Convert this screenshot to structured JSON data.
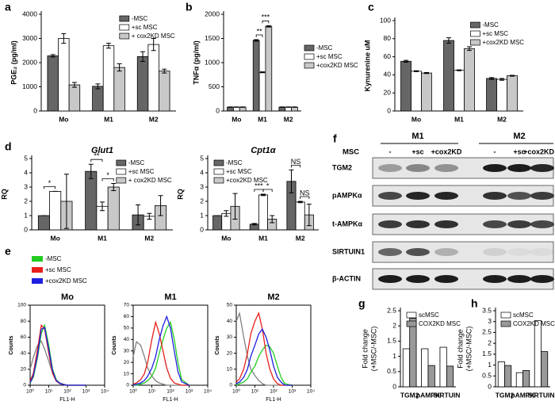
{
  "chart_data": [
    {
      "type": "bar",
      "label": "a",
      "ylabel": "PGE₂ (pg/ml)",
      "categories": [
        "Mo",
        "M1",
        "M2"
      ],
      "ylim": [
        0,
        4000
      ],
      "yticks": [
        0,
        1000,
        2000,
        3000,
        4000
      ],
      "legend": "upper right",
      "series": [
        {
          "name": "-MSC",
          "color": "#666666",
          "values": [
            2280,
            1020,
            2250
          ],
          "errors": [
            50,
            100,
            200
          ]
        },
        {
          "name": "+sc MSC",
          "color": "#ffffff",
          "values": [
            3000,
            2700,
            2750
          ],
          "errors": [
            200,
            100,
            250
          ]
        },
        {
          "name": "+ cox2KD MSC",
          "color": "#c8c8c8",
          "values": [
            1080,
            1800,
            1650
          ],
          "errors": [
            100,
            150,
            80
          ]
        }
      ]
    },
    {
      "type": "bar",
      "label": "b",
      "ylabel": "TNFα (pg/ml)",
      "categories": [
        "Mo",
        "M1",
        "M2"
      ],
      "ylim": [
        0,
        2000
      ],
      "yticks": [
        0,
        500,
        1000,
        1500,
        2000
      ],
      "legend": "right",
      "annotations": [
        "**",
        "***"
      ],
      "series": [
        {
          "name": "-MSC",
          "color": "#666666",
          "values": [
            80,
            1460,
            80
          ],
          "errors": [
            5,
            15,
            5
          ]
        },
        {
          "name": "+sc MSC",
          "color": "#ffffff",
          "values": [
            80,
            800,
            80
          ],
          "errors": [
            5,
            10,
            5
          ]
        },
        {
          "name": "+cox2KD MSC",
          "color": "#c8c8c8",
          "values": [
            80,
            1750,
            80
          ],
          "errors": [
            5,
            15,
            5
          ]
        }
      ]
    },
    {
      "type": "bar",
      "label": "c",
      "ylabel": "Kynurenine uM",
      "categories": [
        "Mo",
        "M1",
        "M2"
      ],
      "ylim": [
        0,
        100
      ],
      "yticks": [
        0,
        20,
        40,
        60,
        80,
        100
      ],
      "legend": "upper right",
      "series": [
        {
          "name": "-MSC",
          "color": "#666666",
          "values": [
            55,
            78,
            36
          ],
          "errors": [
            1,
            3,
            1
          ]
        },
        {
          "name": "+sc MSC",
          "color": "#ffffff",
          "values": [
            44,
            45,
            35
          ],
          "errors": [
            0.5,
            0.5,
            1
          ]
        },
        {
          "name": "+cox2KD MSC",
          "color": "#c8c8c8",
          "values": [
            42,
            69,
            39
          ],
          "errors": [
            0.5,
            2,
            0.5
          ]
        }
      ]
    },
    {
      "type": "bar",
      "label": "d",
      "title": "Glut1",
      "ylabel": "RQ",
      "categories": [
        "Mo",
        "M1",
        "M2"
      ],
      "ylim": [
        0,
        5
      ],
      "yticks": [
        0,
        1,
        2,
        3,
        4,
        5
      ],
      "legend": "upper right",
      "annotations": [
        "*",
        "**",
        "*"
      ],
      "series": [
        {
          "name": "-MSC",
          "color": "#666666",
          "values": [
            1,
            4.1,
            1.05
          ],
          "errors": [
            0,
            0.5,
            0.7
          ]
        },
        {
          "name": "+sc MSC",
          "color": "#ffffff",
          "values": [
            2.7,
            1.65,
            0.95
          ],
          "errors": [
            0,
            0.3,
            0.2
          ]
        },
        {
          "name": "+ cox2KD MSC",
          "color": "#c8c8c8",
          "values": [
            2.0,
            3.0,
            1.7
          ],
          "errors": [
            1.9,
            0.25,
            0.7
          ]
        }
      ]
    },
    {
      "type": "bar",
      "title": "Cpt1α",
      "ylabel": "RQ",
      "categories": [
        "Mo",
        "M1",
        "M2"
      ],
      "ylim": [
        0,
        5
      ],
      "yticks": [
        0,
        1,
        2,
        3,
        4,
        5
      ],
      "legend": "upper left",
      "annotations": [
        "***",
        "*",
        "NS",
        "NS"
      ],
      "series": [
        {
          "name": "-MSC",
          "color": "#666666",
          "values": [
            1,
            0.4,
            3.4
          ],
          "errors": [
            0,
            0.05,
            0.8
          ]
        },
        {
          "name": "+sc MSC",
          "color": "#ffffff",
          "values": [
            1.15,
            2.45,
            1.95
          ],
          "errors": [
            0.2,
            0.05,
            0.05
          ]
        },
        {
          "name": "+cox2KD MSC",
          "color": "#c8c8c8",
          "values": [
            1.65,
            0.75,
            1.05
          ],
          "errors": [
            0.9,
            0.25,
            0.75
          ]
        }
      ]
    },
    {
      "type": "line",
      "label": "e",
      "title": "Mo",
      "xlabel": "FL1-H",
      "ylabel": "Counts",
      "xscale": "log",
      "legend": "above",
      "xlim": [
        1,
        10000
      ],
      "xticks": [
        {
          "value": 1,
          "label": "10⁰"
        },
        {
          "value": 10,
          "label": "10¹"
        },
        {
          "value": 100,
          "label": "10²"
        },
        {
          "value": 1000,
          "label": "10³"
        },
        {
          "value": 10000,
          "label": "10⁴"
        }
      ],
      "ylim": [
        0,
        100
      ],
      "yticks": [
        0,
        20,
        40,
        60,
        80,
        100
      ],
      "x": [
        1,
        1.5,
        2.5,
        4,
        6,
        10,
        16,
        25,
        40,
        63,
        100,
        160,
        250,
        400,
        1000
      ],
      "series": [
        {
          "color": "#808080",
          "values": [
            20,
            35,
            50,
            55,
            45,
            30,
            15,
            6,
            3,
            1,
            0,
            0,
            0,
            0,
            0
          ]
        },
        {
          "name": "-MSC",
          "color": "#22cc22",
          "values": [
            3,
            10,
            35,
            65,
            75,
            50,
            20,
            7,
            2,
            1,
            0,
            0,
            0,
            0,
            0
          ]
        },
        {
          "name": "+sc MSC",
          "color": "#e8201c",
          "values": [
            5,
            15,
            45,
            75,
            70,
            40,
            15,
            5,
            2,
            1,
            0,
            0,
            0,
            0,
            0
          ]
        },
        {
          "name": "+cox2KD MSC",
          "color": "#1f1fe0",
          "values": [
            3,
            12,
            38,
            70,
            72,
            45,
            18,
            6,
            2,
            1,
            0,
            0,
            0,
            0,
            0
          ]
        }
      ]
    },
    {
      "type": "line",
      "title": "M1",
      "xlabel": "FL1-H",
      "ylabel": "Counts",
      "xscale": "log",
      "xlim": [
        1,
        10000
      ],
      "xticks": [
        {
          "value": 1,
          "label": "10⁰"
        },
        {
          "value": 10,
          "label": "10¹"
        },
        {
          "value": 100,
          "label": "10²"
        },
        {
          "value": 1000,
          "label": "10³"
        },
        {
          "value": 10000,
          "label": "10⁴"
        }
      ],
      "ylim": [
        0,
        70
      ],
      "yticks": [
        0,
        10,
        20,
        30,
        40,
        50,
        60,
        70
      ],
      "x": [
        1,
        1.5,
        2.5,
        4,
        6,
        10,
        16,
        25,
        40,
        63,
        100,
        160,
        250,
        400,
        1000
      ],
      "series": [
        {
          "color": "#808080",
          "values": [
            25,
            38,
            35,
            25,
            15,
            8,
            4,
            2,
            1,
            0,
            0,
            0,
            0,
            0,
            0
          ]
        },
        {
          "color": "#22cc22",
          "values": [
            0,
            0,
            1,
            2,
            4,
            8,
            15,
            28,
            40,
            50,
            55,
            40,
            20,
            5,
            0
          ]
        },
        {
          "color": "#e8201c",
          "values": [
            1,
            2,
            5,
            10,
            20,
            40,
            55,
            45,
            30,
            15,
            6,
            2,
            1,
            0,
            0
          ]
        },
        {
          "color": "#1f1fe0",
          "values": [
            0,
            1,
            2,
            4,
            8,
            15,
            25,
            40,
            52,
            60,
            50,
            30,
            12,
            3,
            0
          ]
        }
      ]
    },
    {
      "type": "line",
      "title": "M2",
      "xlabel": "FL1-H",
      "ylabel": "Counts",
      "xscale": "log",
      "xlim": [
        1,
        10000
      ],
      "xticks": [
        {
          "value": 1,
          "label": "10⁰"
        },
        {
          "value": 10,
          "label": "10¹"
        },
        {
          "value": 100,
          "label": "10²"
        },
        {
          "value": 1000,
          "label": "10³"
        },
        {
          "value": 10000,
          "label": "10⁴"
        }
      ],
      "ylim": [
        0,
        50
      ],
      "yticks": [
        0,
        10,
        20,
        30,
        40,
        50
      ],
      "x": [
        1,
        1.5,
        2.5,
        4,
        6,
        10,
        16,
        25,
        40,
        63,
        100,
        160,
        250,
        400,
        1000
      ],
      "series": [
        {
          "color": "#808080",
          "values": [
            40,
            45,
            30,
            18,
            10,
            6,
            3,
            1,
            0,
            0,
            0,
            0,
            0,
            0,
            0
          ]
        },
        {
          "color": "#22cc22",
          "values": [
            0,
            1,
            2,
            4,
            8,
            12,
            18,
            22,
            25,
            24,
            20,
            12,
            5,
            1,
            0
          ]
        },
        {
          "color": "#e8201c",
          "values": [
            2,
            4,
            10,
            20,
            32,
            40,
            45,
            35,
            20,
            10,
            4,
            1,
            0,
            0,
            0
          ]
        },
        {
          "color": "#1f1fe0",
          "values": [
            1,
            2,
            5,
            10,
            18,
            25,
            32,
            35,
            30,
            22,
            12,
            5,
            2,
            0,
            0
          ]
        }
      ]
    },
    {
      "type": "bar",
      "label": "g",
      "ylabel": [
        "Fold change",
        "(+MSC/-MSC)"
      ],
      "categories": [
        "TGM2",
        "pAMPK",
        "SIRTUIN"
      ],
      "ylim": [
        0,
        2.5
      ],
      "yticks": [
        0,
        0.5,
        1,
        1.5,
        2,
        2.5
      ],
      "legend": "upper right",
      "series": [
        {
          "name": "scMSC",
          "color": "#ffffff",
          "values": [
            1.25,
            1.25,
            1.3
          ]
        },
        {
          "name": "COX2KD MSC",
          "color": "#999999",
          "values": [
            2.25,
            0.7,
            0.68
          ]
        }
      ]
    },
    {
      "type": "bar",
      "label": "h",
      "ylabel": [
        "Fold change",
        "(+MSC/-MSC)"
      ],
      "categories": [
        "TGM2",
        "pAMPK",
        "SIRTUIN"
      ],
      "ylim": [
        0,
        3.5
      ],
      "yticks": [
        0,
        0.5,
        1,
        1.5,
        2,
        2.5,
        3,
        3.5
      ],
      "legend": "upper right",
      "series": [
        {
          "name": "scMSC",
          "color": "#ffffff",
          "values": [
            1.15,
            0.65,
            3.05
          ]
        },
        {
          "name": "COX2KD MSC",
          "color": "#999999",
          "values": [
            0.98,
            0.75,
            1.62
          ]
        }
      ]
    }
  ],
  "blot": {
    "label": "f",
    "groups": [
      "M1",
      "M2"
    ],
    "row_label": "MSC",
    "lanes": [
      "-",
      "+sc",
      "+cox2KD",
      "-",
      "+sc",
      "+cox2KD"
    ],
    "proteins": [
      "TGM2",
      "pAMPKα",
      "t-AMPKα",
      "SIRTUIN1",
      "β-ACTIN"
    ]
  }
}
